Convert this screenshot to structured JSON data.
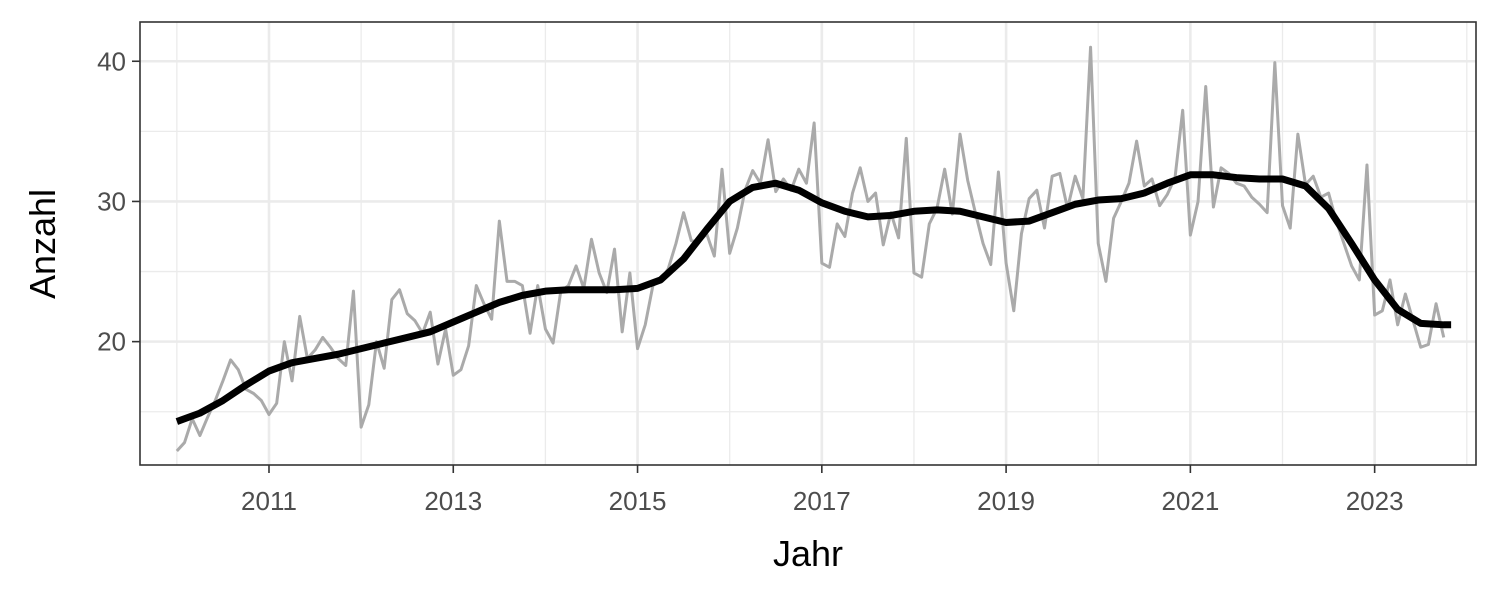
{
  "chart_data": {
    "type": "line",
    "title": "",
    "xlabel": "Jahr",
    "ylabel": "Anzahl",
    "xlim": [
      2009.6,
      2024.1
    ],
    "ylim": [
      11.2,
      42.8
    ],
    "x_ticks": [
      2011,
      2013,
      2015,
      2017,
      2019,
      2021,
      2023
    ],
    "x_tick_labels": [
      "2011",
      "2013",
      "2015",
      "2017",
      "2019",
      "2021",
      "2023"
    ],
    "y_ticks": [
      20,
      30,
      40
    ],
    "y_tick_labels": [
      "20",
      "30",
      "40"
    ],
    "grid": true,
    "legend": "none",
    "colors": {
      "raw": "#aaaaaa",
      "smooth": "#000000",
      "grid": "#ebebeb",
      "panel_border": "#333333"
    },
    "series": [
      {
        "x_start": "2010-01",
        "interval": "month",
        "values": [
          12.2,
          12.8,
          14.5,
          13.3,
          14.6,
          15.8,
          17.2,
          18.7,
          18.0,
          16.6,
          16.3,
          15.8,
          14.8,
          15.6,
          20.0,
          17.2,
          21.8,
          18.8,
          19.4,
          20.3,
          19.6,
          18.8,
          18.3,
          23.6,
          13.9,
          15.5,
          20.0,
          18.1,
          23.0,
          23.7,
          22.0,
          21.5,
          20.6,
          22.1,
          18.4,
          20.9,
          17.6,
          18.0,
          19.7,
          24.0,
          22.7,
          21.6,
          28.6,
          24.3,
          24.3,
          24.0,
          20.6,
          24.0,
          20.9,
          19.9,
          23.6,
          24.0,
          25.4,
          23.8,
          27.3,
          24.9,
          23.5,
          26.6,
          20.7,
          24.9,
          19.5,
          21.2,
          24.0,
          24.4,
          25.2,
          27.0,
          29.2,
          27.2,
          27.1,
          27.7,
          26.1,
          32.3,
          26.3,
          28.1,
          30.8,
          32.2,
          31.3,
          34.4,
          30.7,
          31.6,
          30.8,
          32.3,
          31.3,
          35.6,
          25.6,
          25.3,
          28.4,
          27.5,
          30.6,
          32.4,
          30.0,
          30.6,
          26.9,
          29.2,
          27.4,
          34.5,
          24.9,
          24.6,
          28.4,
          29.5,
          32.3,
          29.1,
          34.8,
          31.5,
          29.2,
          27.0,
          25.5,
          32.1,
          25.6,
          22.2,
          27.7,
          30.2,
          30.8,
          28.1,
          31.8,
          32.0,
          29.5,
          31.8,
          30.2,
          41.0,
          27.0,
          24.3,
          28.8,
          30.0,
          31.3,
          34.3,
          31.1,
          31.6,
          29.7,
          30.5,
          31.7,
          36.5,
          27.6,
          30.0,
          38.2,
          29.6,
          32.4,
          32.0,
          31.3,
          31.1,
          30.3,
          29.8,
          29.2,
          39.9,
          29.7,
          28.1,
          34.8,
          31.2,
          31.8,
          30.3,
          30.6,
          28.6,
          27.0,
          25.4,
          24.4,
          32.6,
          21.9,
          22.2,
          24.4,
          21.2,
          23.4,
          21.5,
          19.6,
          19.8,
          22.7,
          20.3
        ]
      },
      {
        "x": [
          2010.0,
          2010.25,
          2010.5,
          2010.75,
          2011.0,
          2011.25,
          2011.5,
          2011.75,
          2012.0,
          2012.25,
          2012.5,
          2012.75,
          2013.0,
          2013.25,
          2013.5,
          2013.75,
          2014.0,
          2014.25,
          2014.5,
          2014.75,
          2015.0,
          2015.25,
          2015.5,
          2015.75,
          2016.0,
          2016.25,
          2016.5,
          2016.75,
          2017.0,
          2017.25,
          2017.5,
          2017.75,
          2018.0,
          2018.25,
          2018.5,
          2018.75,
          2019.0,
          2019.25,
          2019.5,
          2019.75,
          2020.0,
          2020.25,
          2020.5,
          2020.75,
          2021.0,
          2021.25,
          2021.5,
          2021.75,
          2022.0,
          2022.25,
          2022.5,
          2022.75,
          2023.0,
          2023.25,
          2023.5,
          2023.75,
          2023.83
        ],
        "values": [
          14.3,
          14.9,
          15.8,
          16.9,
          17.9,
          18.5,
          18.8,
          19.1,
          19.5,
          19.9,
          20.3,
          20.7,
          21.4,
          22.1,
          22.8,
          23.3,
          23.6,
          23.7,
          23.7,
          23.7,
          23.8,
          24.4,
          25.9,
          28.0,
          30.0,
          31.0,
          31.3,
          30.8,
          29.9,
          29.3,
          28.9,
          29.0,
          29.3,
          29.4,
          29.3,
          28.9,
          28.5,
          28.6,
          29.2,
          29.8,
          30.1,
          30.2,
          30.6,
          31.3,
          31.9,
          31.9,
          31.7,
          31.6,
          31.6,
          31.1,
          29.5,
          27.0,
          24.4,
          22.3,
          21.3,
          21.2,
          21.2
        ]
      }
    ]
  }
}
